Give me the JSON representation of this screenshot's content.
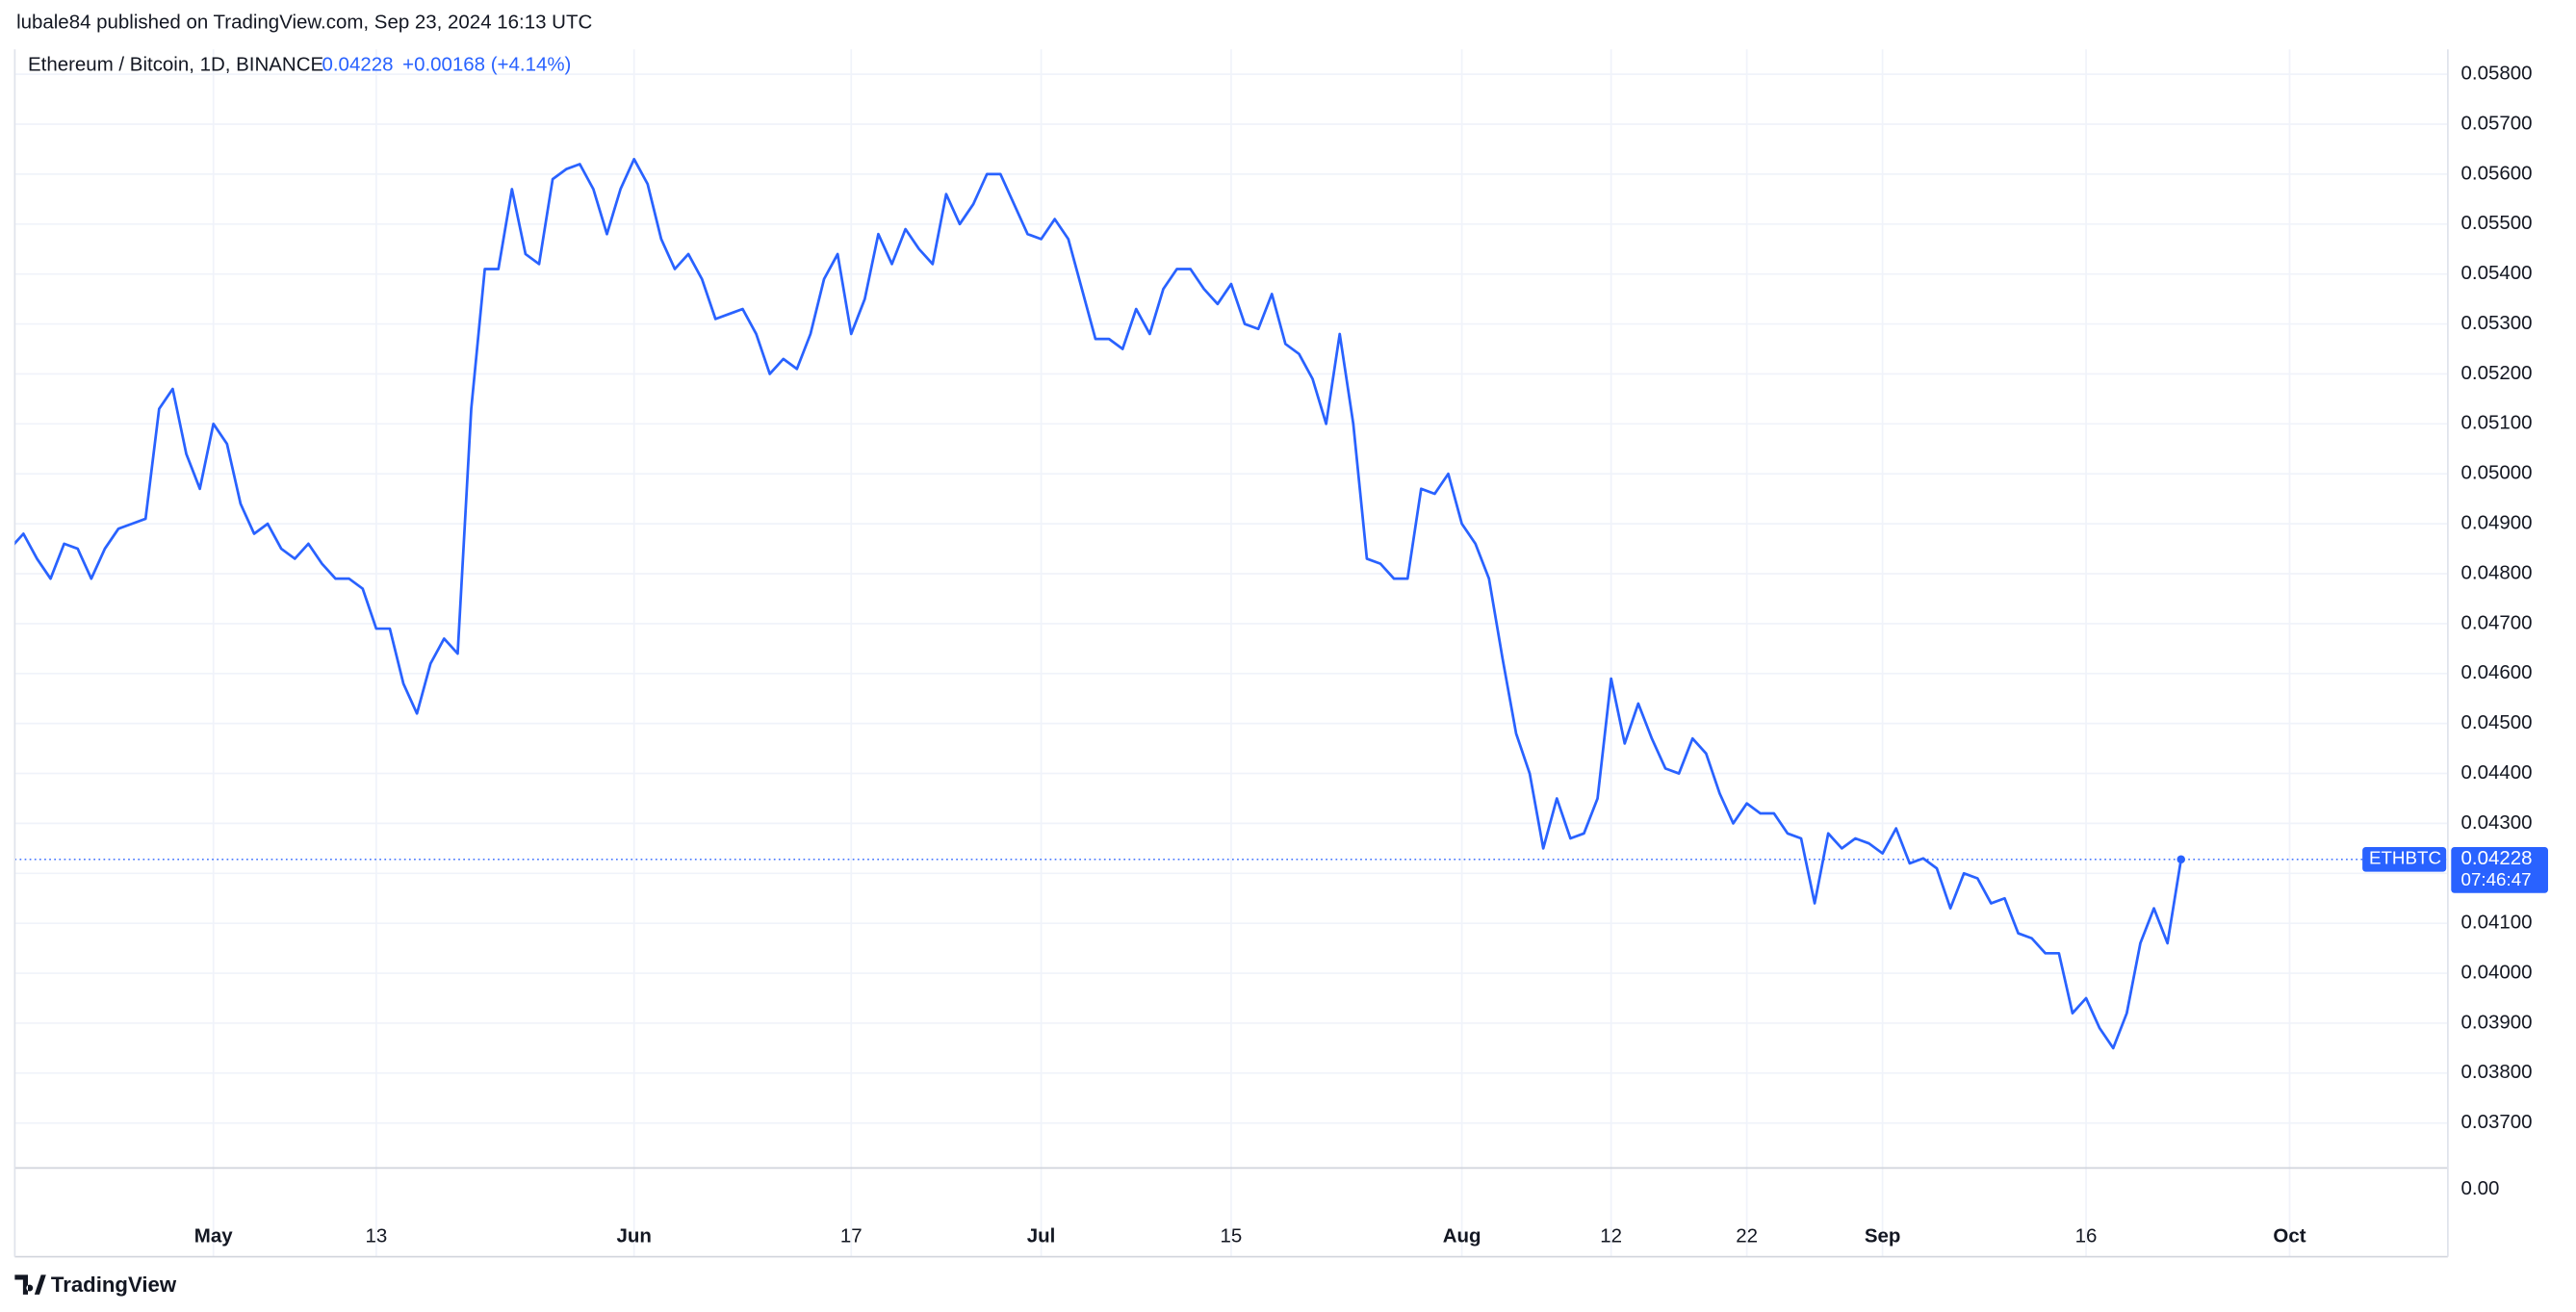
{
  "header": "lubale84 published on TradingView.com, Sep 23, 2024 16:13 UTC",
  "legend_title": "Ethereum / Bitcoin, 1D, BINANCE",
  "change": "+0.00168 (+4.14%)",
  "countdown": "07:46:47",
  "footer": "TradingView",
  "chart_data": {
    "type": "line",
    "categories": [
      null,
      null,
      null,
      null,
      null,
      null,
      null,
      null,
      null,
      null,
      null,
      null,
      null,
      null,
      null,
      "May",
      null,
      null,
      null,
      null,
      null,
      null,
      null,
      null,
      null,
      null,
      null,
      "13",
      null,
      null,
      null,
      null,
      null,
      null,
      null,
      null,
      null,
      null,
      null,
      null,
      null,
      null,
      null,
      null,
      null,
      null,
      "Jun",
      null,
      null,
      null,
      null,
      null,
      null,
      null,
      null,
      null,
      null,
      null,
      null,
      null,
      null,
      null,
      "17",
      null,
      null,
      null,
      null,
      null,
      null,
      null,
      null,
      null,
      null,
      null,
      null,
      null,
      "Jul",
      null,
      null,
      null,
      null,
      null,
      null,
      null,
      null,
      null,
      null,
      null,
      null,
      null,
      "15",
      null,
      null,
      null,
      null,
      null,
      null,
      null,
      null,
      null,
      null,
      null,
      null,
      null,
      null,
      null,
      null,
      "Aug",
      null,
      null,
      null,
      null,
      null,
      null,
      null,
      null,
      null,
      null,
      "12",
      null,
      null,
      null,
      null,
      null,
      null,
      null,
      null,
      null,
      "22",
      null,
      null,
      null,
      null,
      null,
      null,
      null,
      null,
      null,
      "Sep",
      null,
      null,
      null,
      null,
      null,
      null,
      null,
      null,
      null,
      null,
      null,
      null,
      null,
      null,
      "16",
      null,
      null,
      null,
      null,
      null,
      null,
      null,
      null,
      null,
      null,
      null,
      null,
      null,
      null,
      "Oct",
      null,
      null,
      null,
      null,
      null,
      null,
      null,
      null,
      null,
      null,
      null
    ],
    "series": [
      {
        "name": "ETHBTC",
        "color": "#2962ff",
        "values": [
          0.0485,
          0.0488,
          0.0483,
          0.0479,
          0.0486,
          0.0485,
          0.0479,
          0.0485,
          0.0489,
          0.049,
          0.0491,
          0.0513,
          0.0517,
          0.0504,
          0.0497,
          0.051,
          0.0506,
          0.0494,
          0.0488,
          0.049,
          0.0485,
          0.0483,
          0.0486,
          0.0482,
          0.0479,
          0.0479,
          0.0477,
          0.0469,
          0.0469,
          0.0458,
          0.0452,
          0.0462,
          0.0467,
          0.0464,
          0.0513,
          0.0541,
          0.0541,
          0.0557,
          0.0544,
          0.0542,
          0.0559,
          0.0561,
          0.0562,
          0.0557,
          0.0548,
          0.0557,
          0.0563,
          0.0558,
          0.0547,
          0.0541,
          0.0544,
          0.0539,
          0.0531,
          0.0532,
          0.0533,
          0.0528,
          0.052,
          0.0523,
          0.0521,
          0.0528,
          0.0539,
          0.0544,
          0.0528,
          0.0535,
          0.0548,
          0.0542,
          0.0549,
          0.0545,
          0.0542,
          0.0556,
          0.055,
          0.0554,
          0.056,
          0.056,
          0.0554,
          0.0548,
          0.0547,
          0.0551,
          0.0547,
          0.0537,
          0.0527,
          0.0527,
          0.0525,
          0.0533,
          0.0528,
          0.0537,
          0.0541,
          0.0541,
          0.0537,
          0.0534,
          0.0538,
          0.053,
          0.0529,
          0.0536,
          0.0526,
          0.0524,
          0.0519,
          0.051,
          0.0528,
          0.051,
          0.0483,
          0.0482,
          0.0479,
          0.0479,
          0.0497,
          0.0496,
          0.05,
          0.049,
          0.0486,
          0.0479,
          0.0463,
          0.0448,
          0.044,
          0.0425,
          0.0435,
          0.0427,
          0.0428,
          0.0435,
          0.0459,
          0.0446,
          0.0454,
          0.0447,
          0.0441,
          0.044,
          0.0447,
          0.0444,
          0.0436,
          0.043,
          0.0434,
          0.0432,
          0.0432,
          0.0428,
          0.0427,
          0.0414,
          0.0428,
          0.0425,
          0.0427,
          0.0426,
          0.0424,
          0.0429,
          0.0422,
          0.0423,
          0.0421,
          0.0413,
          0.042,
          0.0419,
          0.0414,
          0.0415,
          0.0408,
          0.0407,
          0.0404,
          0.0404,
          0.0392,
          0.0395,
          0.0389,
          0.0385,
          0.0392,
          0.0406,
          0.0413,
          0.0406,
          0.04228,
          null,
          null,
          null,
          null,
          null,
          null,
          null,
          null,
          null,
          null,
          null,
          null,
          null,
          null,
          null,
          null,
          null,
          null,
          null
        ]
      }
    ],
    "ylim": [
      0.0361,
      0.0585
    ],
    "yticks": [
      {
        "value": 0.037,
        "label": "0.03700"
      },
      {
        "value": 0.038,
        "label": "0.03800"
      },
      {
        "value": 0.039,
        "label": "0.03900"
      },
      {
        "value": 0.04,
        "label": "0.04000"
      },
      {
        "value": 0.041,
        "label": "0.04100"
      },
      {
        "value": 0.042,
        "label": "0.04200"
      },
      {
        "value": 0.043,
        "label": "0.04300"
      },
      {
        "value": 0.044,
        "label": "0.04400"
      },
      {
        "value": 0.045,
        "label": "0.04500"
      },
      {
        "value": 0.046,
        "label": "0.04600"
      },
      {
        "value": 0.047,
        "label": "0.04700"
      },
      {
        "value": 0.048,
        "label": "0.04800"
      },
      {
        "value": 0.049,
        "label": "0.04900"
      },
      {
        "value": 0.05,
        "label": "0.05000"
      },
      {
        "value": 0.051,
        "label": "0.05100"
      },
      {
        "value": 0.052,
        "label": "0.05200"
      },
      {
        "value": 0.053,
        "label": "0.05300"
      },
      {
        "value": 0.054,
        "label": "0.05400"
      },
      {
        "value": 0.055,
        "label": "0.05500"
      },
      {
        "value": 0.056,
        "label": "0.05600"
      },
      {
        "value": 0.057,
        "label": "0.05700"
      },
      {
        "value": 0.058,
        "label": "0.05800"
      }
    ],
    "pane_yticks": [
      {
        "value": 0,
        "label": "0.00"
      }
    ],
    "grid": true
  }
}
